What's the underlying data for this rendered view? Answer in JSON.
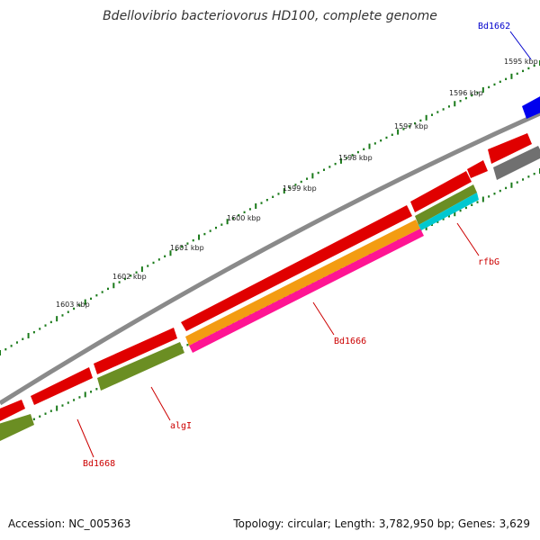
{
  "title": "Bdellovibrio bacteriovorus HD100, complete genome",
  "accession": "Accession: NC_005363",
  "topology": "Topology: circular; Length: 3,782,950 bp; Genes: 3,629",
  "colors": {
    "backbone": "#8a8a8a",
    "tick": "#1a7a1a",
    "gene_red": "#e00000",
    "gene_olive": "#6b8e23",
    "gene_orange": "#f39c12",
    "gene_pink": "#ff1493",
    "gene_cyan": "#00c8d0",
    "gene_gray": "#707070",
    "gene_blue": "#0000ee",
    "label_red": "#cc0000",
    "label_blue": "#0000cc"
  },
  "kbp_labels": [
    "1595 kbp",
    "1596 kbp",
    "1597 kbp",
    "1598 kbp",
    "1599 kbp",
    "1600 kbp",
    "1601 kbp",
    "1602 kbp",
    "1603 kbp"
  ],
  "gene_labels": [
    "Bd1662",
    "rfbG",
    "Bd1666",
    "algI",
    "Bd1668"
  ]
}
